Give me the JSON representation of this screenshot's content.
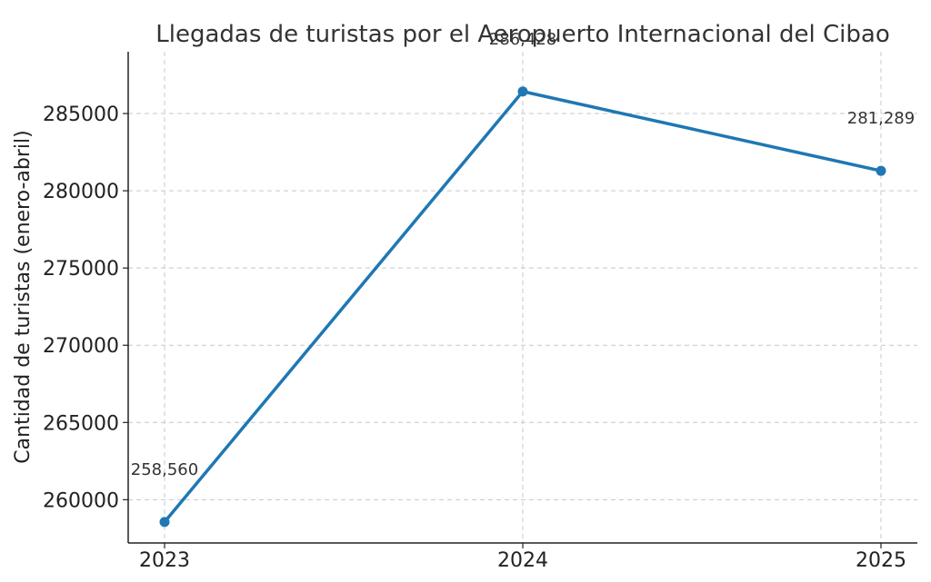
{
  "chart_data": {
    "type": "line",
    "title": "Llegadas de turistas por el Aeropuerto Internacional del Cibao",
    "xlabel": "",
    "ylabel": "Cantidad de turistas (enero-abril)",
    "categories": [
      "2023",
      "2024",
      "2025"
    ],
    "series": [
      {
        "values": [
          258560,
          286428,
          281289
        ],
        "data_labels": [
          "258,560",
          "286,428",
          "281,289"
        ],
        "color": "#1f77b4",
        "marker": "circle"
      }
    ],
    "yticks": [
      260000,
      265000,
      270000,
      275000,
      280000,
      285000
    ],
    "ylim": [
      257200,
      289000
    ],
    "grid": true,
    "legend": "none"
  }
}
